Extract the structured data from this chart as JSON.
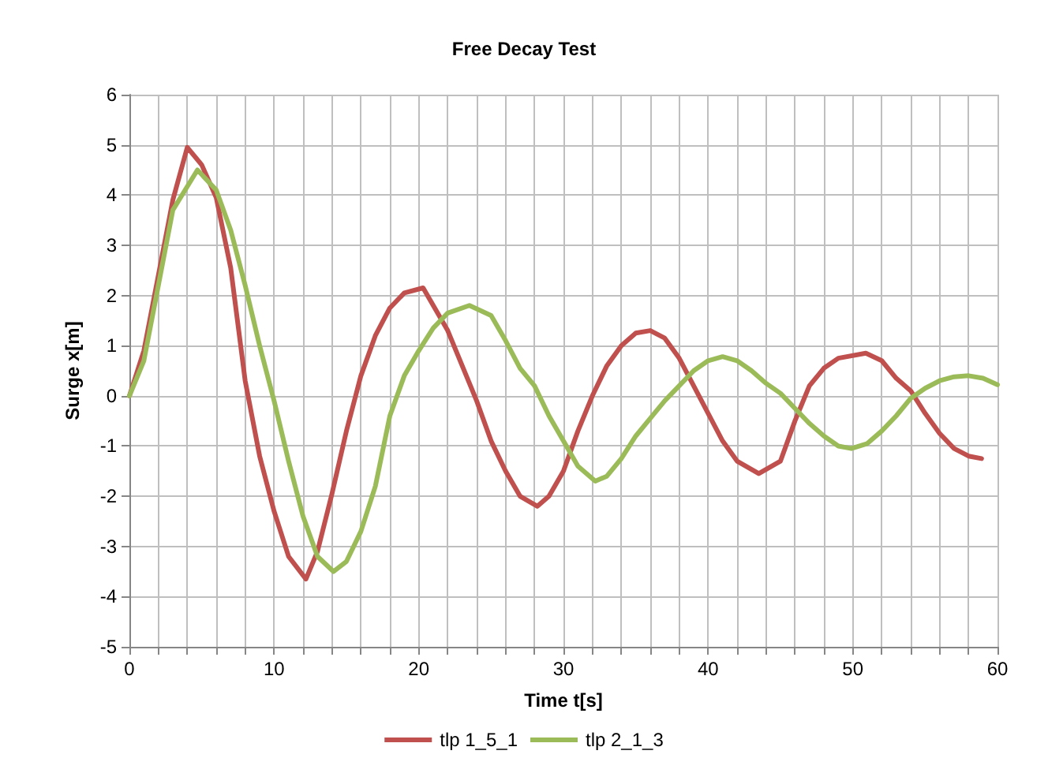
{
  "chart_data": {
    "type": "line",
    "title": "Free Decay Test",
    "xlabel": "Time t[s]",
    "ylabel": "Surge x[m]",
    "xlim": [
      0,
      60
    ],
    "ylim": [
      -5,
      6
    ],
    "xticks": [
      0,
      {
        "value": 2,
        "label": null
      },
      {
        "value": 4,
        "label": null
      },
      {
        "value": 6,
        "label": null
      },
      {
        "value": 8,
        "label": null
      },
      10,
      {
        "value": 12,
        "label": null
      },
      {
        "value": 14,
        "label": null
      },
      {
        "value": 16,
        "label": null
      },
      {
        "value": 18,
        "label": null
      },
      20,
      {
        "value": 22,
        "label": null
      },
      {
        "value": 24,
        "label": null
      },
      {
        "value": 26,
        "label": null
      },
      {
        "value": 28,
        "label": null
      },
      30,
      {
        "value": 32,
        "label": null
      },
      {
        "value": 34,
        "label": null
      },
      {
        "value": 36,
        "label": null
      },
      {
        "value": 38,
        "label": null
      },
      40,
      {
        "value": 42,
        "label": null
      },
      {
        "value": 44,
        "label": null
      },
      {
        "value": 46,
        "label": null
      },
      {
        "value": 48,
        "label": null
      },
      50,
      {
        "value": 52,
        "label": null
      },
      {
        "value": 54,
        "label": null
      },
      {
        "value": 56,
        "label": null
      },
      {
        "value": 58,
        "label": null
      },
      60
    ],
    "yticks": [
      -5,
      -4,
      -3,
      -2,
      -1,
      0,
      1,
      2,
      3,
      4,
      5,
      6
    ],
    "grid": true,
    "legend": "bottom",
    "marker": "none",
    "line_style": "solid",
    "series": [
      {
        "name": "tlp 1_5_1",
        "color": "#c0504d",
        "x": [
          0,
          1,
          2,
          3,
          4,
          5,
          6,
          7,
          8,
          9,
          10,
          11,
          12.2,
          13,
          14,
          15,
          16,
          17,
          18,
          19,
          20.3,
          22,
          23,
          24,
          25,
          26,
          27,
          28.2,
          29,
          30,
          31,
          32,
          33,
          34,
          35,
          36,
          37,
          38,
          39,
          40,
          41,
          42,
          43.5,
          45,
          46,
          47,
          48,
          49,
          50.9,
          52,
          53,
          54,
          55,
          56,
          57,
          58,
          58.9
        ],
        "values": [
          0,
          0.9,
          2.4,
          3.9,
          4.95,
          4.6,
          3.95,
          2.55,
          0.3,
          -1.2,
          -2.3,
          -3.2,
          -3.65,
          -3.1,
          -1.95,
          -0.7,
          0.4,
          1.2,
          1.75,
          2.05,
          2.15,
          1.3,
          0.6,
          -0.1,
          -0.9,
          -1.5,
          -2.0,
          -2.2,
          -2.0,
          -1.5,
          -0.7,
          0.0,
          0.6,
          1.0,
          1.25,
          1.3,
          1.15,
          0.75,
          0.2,
          -0.35,
          -0.9,
          -1.3,
          -1.55,
          -1.3,
          -0.5,
          0.2,
          0.55,
          0.75,
          0.85,
          0.7,
          0.35,
          0.1,
          -0.35,
          -0.75,
          -1.05,
          -1.2,
          -1.25
        ]
      },
      {
        "name": "tlp 2_1_3",
        "color": "#9bbb59",
        "x": [
          0,
          1,
          2,
          3,
          4.7,
          6,
          7,
          8,
          9,
          10,
          11,
          12,
          13,
          14.1,
          15,
          16,
          17,
          18,
          19,
          20,
          21,
          22,
          23.5,
          25,
          26,
          27,
          28,
          29,
          30,
          31,
          32.2,
          33,
          34,
          35,
          36,
          37,
          38,
          39,
          40,
          41,
          42,
          43,
          44,
          45,
          46,
          47,
          48,
          49,
          49.9,
          51,
          52,
          53,
          54,
          55,
          56,
          57,
          58,
          59,
          60
        ],
        "values": [
          0,
          0.7,
          2.2,
          3.7,
          4.5,
          4.1,
          3.3,
          2.2,
          1.0,
          -0.1,
          -1.3,
          -2.4,
          -3.2,
          -3.5,
          -3.3,
          -2.7,
          -1.8,
          -0.4,
          0.4,
          0.9,
          1.35,
          1.65,
          1.8,
          1.6,
          1.1,
          0.55,
          0.2,
          -0.4,
          -0.9,
          -1.4,
          -1.7,
          -1.6,
          -1.25,
          -0.8,
          -0.45,
          -0.1,
          0.2,
          0.5,
          0.7,
          0.78,
          0.7,
          0.5,
          0.25,
          0.05,
          -0.25,
          -0.55,
          -0.8,
          -1.0,
          -1.05,
          -0.95,
          -0.7,
          -0.4,
          -0.05,
          0.15,
          0.3,
          0.38,
          0.4,
          0.35,
          0.22
        ]
      }
    ]
  }
}
